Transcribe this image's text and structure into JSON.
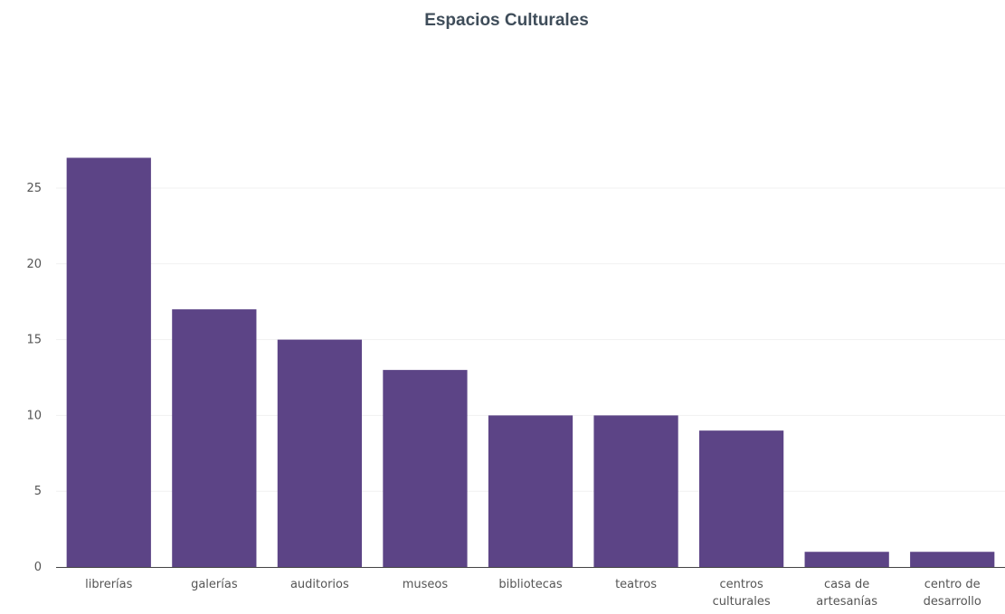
{
  "chart_data": {
    "type": "bar",
    "title": "Espacios Culturales",
    "xlabel": "",
    "ylabel": "",
    "categories": [
      [
        "librerías"
      ],
      [
        "galerías"
      ],
      [
        "auditorios"
      ],
      [
        "museos"
      ],
      [
        "bibliotecas"
      ],
      [
        "teatros"
      ],
      [
        "centros",
        "culturales"
      ],
      [
        "casa de",
        "artesanías"
      ],
      [
        "centro de",
        "desarrollo"
      ]
    ],
    "values": [
      27,
      17,
      15,
      13,
      10,
      10,
      9,
      1,
      1
    ],
    "ylim": [
      0,
      28
    ],
    "yticks": [
      "0",
      "5",
      "10",
      "15",
      "20",
      "25"
    ],
    "grid": true,
    "legend": "none",
    "bar_color": "#5c4486"
  }
}
